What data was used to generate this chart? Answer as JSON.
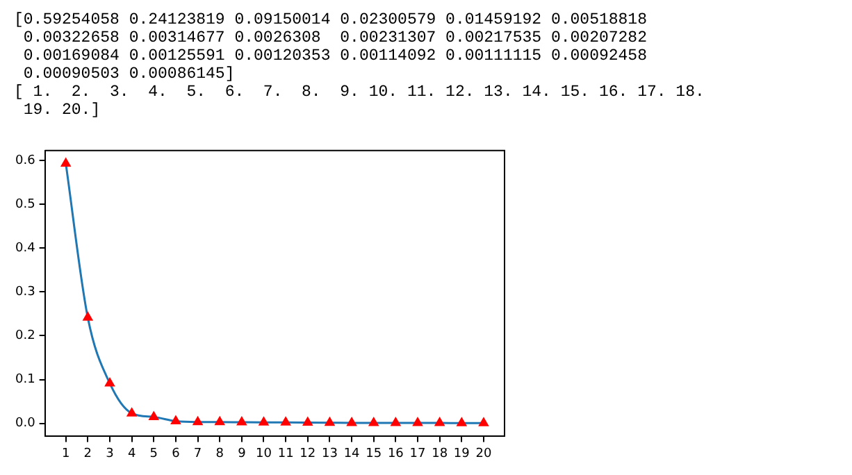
{
  "chart_data": {
    "type": "line",
    "annotations": [
      "[0.59254058 0.24123819 0.09150014 0.02300579 0.01459192 0.00518818",
      " 0.00322658 0.00314677 0.0026308  0.00231307 0.00217535 0.00207282",
      " 0.00169084 0.00125591 0.00120353 0.00114092 0.00111115 0.00092458",
      " 0.00090503 0.00086145]",
      "[ 1.  2.  3.  4.  5.  6.  7.  8.  9. 10. 11. 12. 13. 14. 15. 16. 17. 18.",
      " 19. 20.]"
    ],
    "x": [
      1,
      2,
      3,
      4,
      5,
      6,
      7,
      8,
      9,
      10,
      11,
      12,
      13,
      14,
      15,
      16,
      17,
      18,
      19,
      20
    ],
    "series": [
      {
        "type": "line",
        "color": "#1f77b4",
        "marker": "none",
        "values": [
          0.59254058,
          0.24123819,
          0.09150014,
          0.02300579,
          0.01459192,
          0.00518818,
          0.00322658,
          0.00314677,
          0.0026308,
          0.00231307,
          0.00217535,
          0.00207282,
          0.00169084,
          0.00125591,
          0.00120353,
          0.00114092,
          0.00111115,
          0.00092458,
          0.00090503,
          0.00086145
        ]
      },
      {
        "type": "scatter",
        "color": "#ff0000",
        "marker": "triangle",
        "values": [
          0.59254058,
          0.24123819,
          0.09150014,
          0.02300579,
          0.01459192,
          0.00518818,
          0.00322658,
          0.00314677,
          0.0026308,
          0.00231307,
          0.00217535,
          0.00207282,
          0.00169084,
          0.00125591,
          0.00120353,
          0.00114092,
          0.00111115,
          0.00092458,
          0.00090503,
          0.00086145
        ]
      }
    ],
    "xlim": [
      0.05,
      20.95
    ],
    "xticks": [
      1,
      2,
      3,
      4,
      5,
      6,
      7,
      8,
      9,
      10,
      11,
      12,
      13,
      14,
      15,
      16,
      17,
      18,
      19,
      20
    ],
    "ylim": [
      -0.0296,
      0.6222
    ],
    "yticks": [
      {
        "value": 0,
        "label": "0.0"
      },
      {
        "value": 0.1,
        "label": "0.1"
      },
      {
        "value": 0.2,
        "label": "0.2"
      },
      {
        "value": 0.3,
        "label": "0.3"
      },
      {
        "value": 0.4,
        "label": "0.4"
      },
      {
        "value": 0.5,
        "label": "0.5"
      },
      {
        "value": 0.6,
        "label": "0.6"
      }
    ],
    "grid": false,
    "legend": false
  }
}
